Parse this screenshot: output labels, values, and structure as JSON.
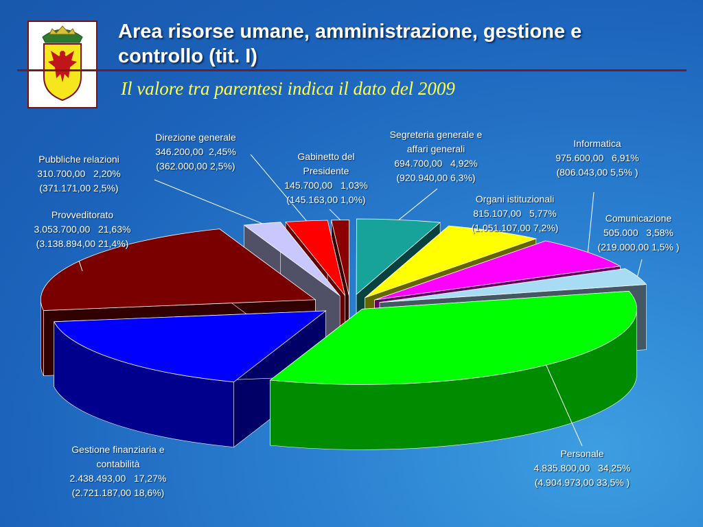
{
  "title_line1": "Area risorse umane, amministrazione, gestione e",
  "title_line2": "controllo (tit. I)",
  "subtitle": "Il valore tra parentesi indica il dato del 2009",
  "colors": {
    "background": "#1c63bb",
    "title_rule": "#7a1a1a",
    "subtitle": "#ffff44"
  },
  "logo_icon": "eagle-coat-of-arms-icon",
  "chart_data": {
    "type": "pie",
    "style": "3d-exploded",
    "series": [
      {
        "name": "Segreteria generale e affari generali",
        "value": 694700.0,
        "value_label": "694.700,00",
        "percent_label": "4,92%",
        "prev_label": "(920.940,00   6,3%)",
        "color": "#17a29a",
        "label_lines": [
          "Segreteria generale e",
          "affari generali"
        ]
      },
      {
        "name": "Organi istituzionali",
        "value": 815107.0,
        "value_label": "815.107,00",
        "percent_label": "5,77%",
        "prev_label": "(1.051.107,00  7,2%)",
        "color": "#ffff00",
        "label_lines": [
          "Organi istituzionali"
        ]
      },
      {
        "name": "Informatica",
        "value": 975600.0,
        "value_label": "975.600,00",
        "percent_label": "6,91%",
        "prev_label": "(806.043,00   5,5% )",
        "color": "#ff00ff",
        "label_lines": [
          "Informatica"
        ]
      },
      {
        "name": "Comunicazione",
        "value": 505000,
        "value_label": "505.000",
        "percent_label": "3,58%",
        "prev_label": "(219.000,00  1,5% )",
        "color": "#a8dcf4",
        "label_lines": [
          "Comunicazione"
        ]
      },
      {
        "name": "Personale",
        "value": 4835800.0,
        "value_label": "4.835.800,00",
        "percent_label": "34,25%",
        "prev_label": "(4.904.973,00   33,5% )",
        "color": "#00ff00",
        "label_lines": [
          "Personale"
        ]
      },
      {
        "name": "Gestione finanziaria e contabilità",
        "value": 2438493.0,
        "value_label": "2.438.493,00",
        "percent_label": "17,27%",
        "prev_label": "(2.721.187,00  18,6%)",
        "color": "#0000ff",
        "label_lines": [
          "Gestione finanziaria e",
          "contabilità"
        ]
      },
      {
        "name": "Provveditorato",
        "value": 3053700.0,
        "value_label": "3.053.700,00",
        "percent_label": "21,63%",
        "prev_label": "(3.138.894,00  21,4%)",
        "color": "#7a0000",
        "label_lines": [
          "Provveditorato"
        ]
      },
      {
        "name": "Pubbliche relazioni",
        "value": 310700.0,
        "value_label": "310.700,00",
        "percent_label": "2,20%",
        "prev_label": "(371.171,00  2,5%)",
        "color": "#c8c8ff",
        "label_lines": [
          "Pubbliche relazioni"
        ]
      },
      {
        "name": "Direzione generale",
        "value": 346200.0,
        "value_label": "346.200,00",
        "percent_label": "2,45%",
        "prev_label": "(362.000,00   2,5%)",
        "color": "#ff0000",
        "label_lines": [
          "Direzione generale"
        ]
      },
      {
        "name": "Gabinetto del Presidente",
        "value": 145700.0,
        "value_label": "145.700,00",
        "percent_label": "1,03%",
        "prev_label": "(145.163,00   1,0%)",
        "color": "#8b0000",
        "label_lines": [
          "Gabinetto del",
          "Presidente"
        ]
      }
    ]
  }
}
